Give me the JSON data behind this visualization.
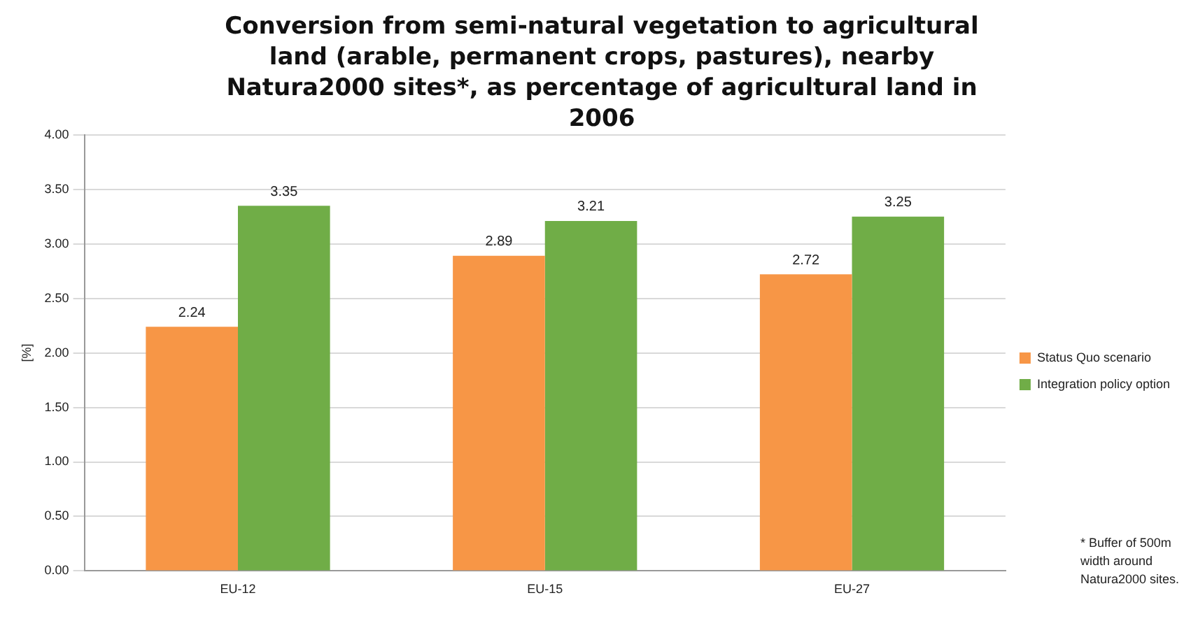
{
  "chart_data": {
    "type": "bar",
    "title": "Conversion from semi-natural vegetation to agricultural land (arable, permanent crops, pastures), nearby Natura2000 sites*, as percentage of agricultural land in 2006",
    "ylabel": "[%]",
    "categories": [
      "EU-12",
      "EU-15",
      "EU-27"
    ],
    "series": [
      {
        "name": "Status Quo scenario",
        "color": "#f79646",
        "values": [
          2.24,
          2.89,
          2.72
        ]
      },
      {
        "name": "Integration policy option",
        "color": "#70ad47",
        "values": [
          3.35,
          3.21,
          3.25
        ]
      }
    ],
    "ylim": [
      0,
      4
    ],
    "yticks": [
      {
        "value": 0,
        "label": "0.00"
      },
      {
        "value": 0.5,
        "label": "0.50"
      },
      {
        "value": 1,
        "label": "1.00"
      },
      {
        "value": 1.5,
        "label": "1.50"
      },
      {
        "value": 2,
        "label": "2.00"
      },
      {
        "value": 2.5,
        "label": "2.50"
      },
      {
        "value": 3,
        "label": "3.00"
      },
      {
        "value": 3.5,
        "label": "3.50"
      },
      {
        "value": 4,
        "label": "4.00"
      }
    ],
    "grid": "y",
    "legend": "right",
    "data_labels": true,
    "annotations": [
      "* Buffer of  500m width around Natura2000 sites."
    ]
  }
}
